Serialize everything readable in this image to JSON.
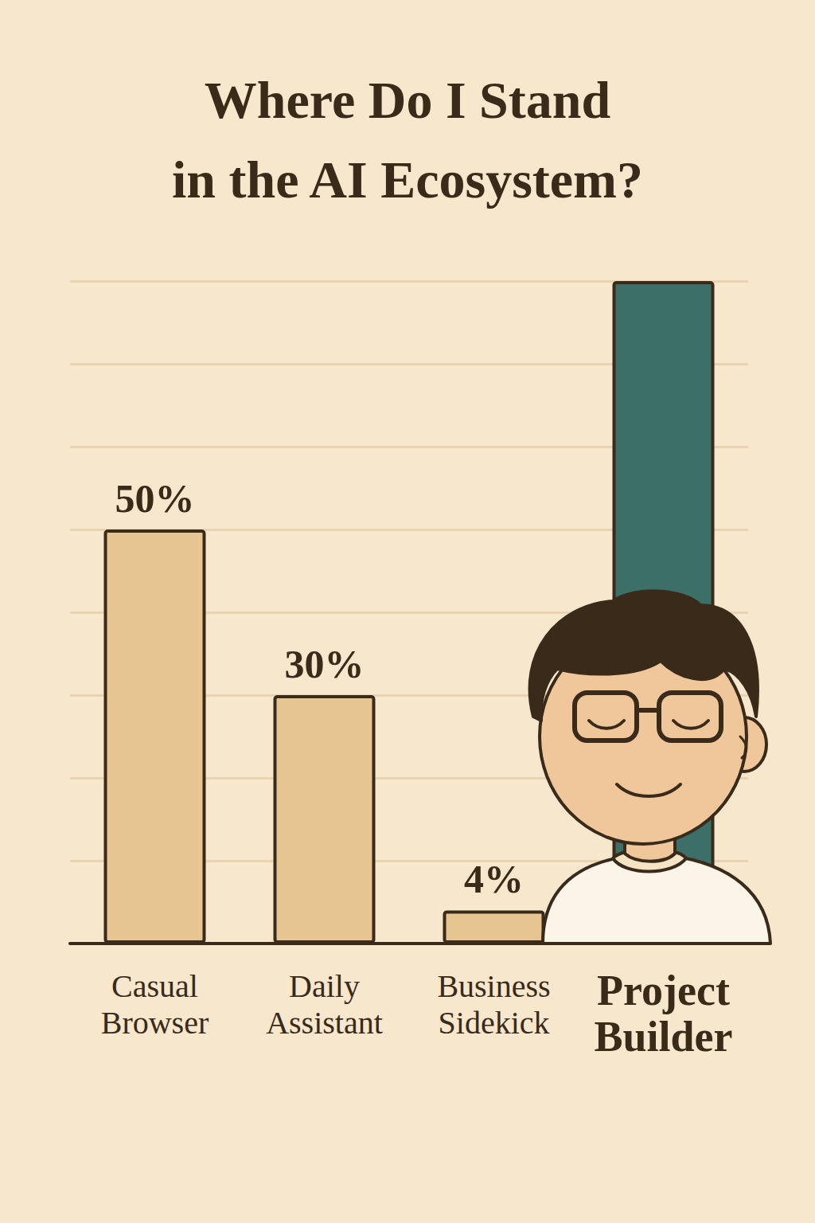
{
  "chart_data": {
    "type": "bar",
    "title": "Where Do I Stand in the AI Ecosystem?",
    "categories": [
      "Casual Browser",
      "Daily Assistant",
      "Business Sidekick",
      "Project Builder"
    ],
    "values": [
      50,
      30,
      4,
      80
    ],
    "value_labels": [
      "50%",
      "30%",
      "4%",
      null
    ],
    "colors": [
      "#e6c590",
      "#e6c590",
      "#e6c590",
      "#3b6f67"
    ],
    "ylim": [
      0,
      80
    ],
    "yticks": [
      0,
      10,
      20,
      30,
      40,
      50,
      60,
      70,
      80
    ],
    "grid": true,
    "data_labels": true,
    "tick_labels": "x"
  }
}
